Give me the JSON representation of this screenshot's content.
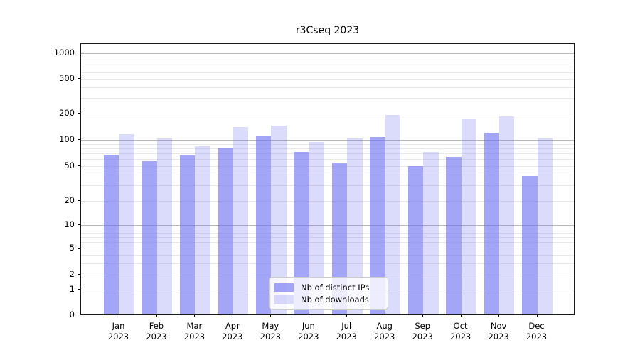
{
  "chart_data": {
    "type": "bar",
    "title": "r3Cseq 2023",
    "categories": [
      "Jan 2023",
      "Feb 2023",
      "Mar 2023",
      "Apr 2023",
      "May 2023",
      "Jun 2023",
      "Jul 2023",
      "Aug 2023",
      "Sep 2023",
      "Oct 2023",
      "Nov 2023",
      "Dec 2023"
    ],
    "series": [
      {
        "name": "Nb of distinct IPs",
        "color": "rgba(106,110,240,0.62)",
        "values": [
          65,
          55,
          64,
          79,
          105,
          70,
          52,
          103,
          48,
          62,
          116,
          37
        ]
      },
      {
        "name": "Nb of downloads",
        "color": "rgba(106,110,240,0.24)",
        "values": [
          112,
          101,
          82,
          134,
          140,
          92,
          100,
          186,
          70,
          165,
          180,
          100
        ]
      }
    ],
    "yscale": "log",
    "y_tick_values": [
      0,
      1,
      2,
      5,
      10,
      20,
      50,
      100,
      200,
      500,
      1000
    ],
    "ylim": [
      0,
      1000
    ],
    "grid": true,
    "legend_position": "lower center",
    "colors": {
      "major_grid": "#bababa",
      "minor_grid": "#e9e9ec",
      "axis": "#1a1a1a",
      "bar_dark": "rgba(106,110,240,0.62)",
      "bar_light": "rgba(106,110,240,0.24)"
    }
  }
}
